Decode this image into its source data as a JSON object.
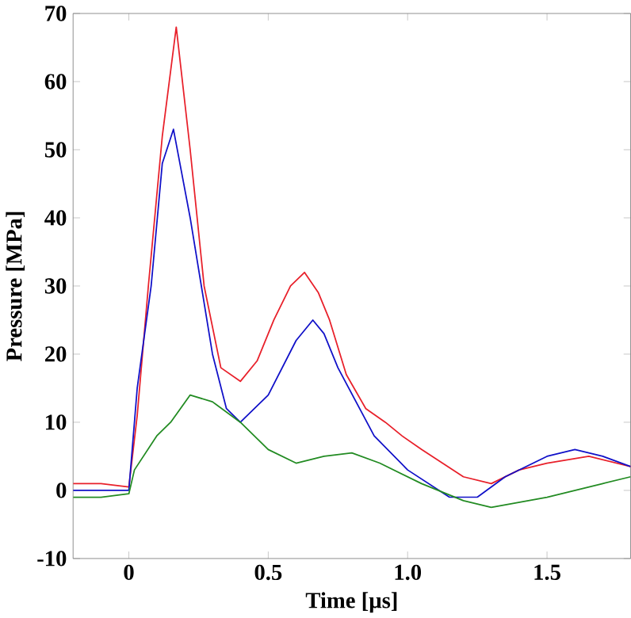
{
  "chart_data": {
    "type": "line",
    "xlabel": "Time [µs]",
    "ylabel": "Pressure [MPa]",
    "xlim": [
      -0.2,
      1.8
    ],
    "ylim": [
      -10,
      70
    ],
    "xticks": [
      {
        "value": 0,
        "label": "0"
      },
      0.5,
      {
        "value": 1,
        "label": "1.0"
      },
      1.5
    ],
    "yticks": [
      -10,
      0,
      10,
      20,
      30,
      40,
      50,
      60,
      70
    ],
    "grid": false,
    "marker": "none",
    "line_style": "solid",
    "series": [
      {
        "color": "#e8202a",
        "x": [
          -0.2,
          -0.1,
          0,
          0.03,
          0.07,
          0.12,
          0.17,
          0.22,
          0.27,
          0.33,
          0.4,
          0.46,
          0.52,
          0.58,
          0.63,
          0.68,
          0.72,
          0.78,
          0.85,
          0.92,
          0.98,
          1.05,
          1.2,
          1.3,
          1.4,
          1.5,
          1.65,
          1.8
        ],
        "values": [
          1,
          1,
          0.5,
          11,
          30,
          52,
          68,
          50,
          30,
          18,
          16,
          19,
          25,
          30,
          32,
          29,
          25,
          17,
          12,
          10,
          8,
          6,
          2,
          1,
          3,
          4,
          5,
          3.5
        ]
      },
      {
        "color": "#1010c8",
        "x": [
          -0.2,
          -0.1,
          0,
          0.03,
          0.08,
          0.12,
          0.16,
          0.22,
          0.3,
          0.35,
          0.4,
          0.5,
          0.6,
          0.66,
          0.7,
          0.75,
          0.88,
          1.0,
          1.15,
          1.25,
          1.35,
          1.5,
          1.6,
          1.7,
          1.8
        ],
        "values": [
          0,
          0,
          0,
          15,
          30,
          48,
          53,
          40,
          20,
          12,
          10,
          14,
          22,
          25,
          23,
          18,
          8,
          3,
          -1,
          -1,
          2,
          5,
          6,
          5,
          3.5
        ]
      },
      {
        "color": "#228b22",
        "x": [
          -0.2,
          -0.1,
          0,
          0.02,
          0.1,
          0.15,
          0.22,
          0.3,
          0.4,
          0.5,
          0.6,
          0.7,
          0.8,
          0.9,
          1.05,
          1.2,
          1.3,
          1.5,
          1.7,
          1.8
        ],
        "values": [
          -1,
          -1,
          -0.5,
          3,
          8,
          10,
          14,
          13,
          10,
          6,
          4,
          5,
          5.5,
          4,
          1,
          -1.5,
          -2.5,
          -1,
          1,
          2
        ]
      }
    ]
  }
}
